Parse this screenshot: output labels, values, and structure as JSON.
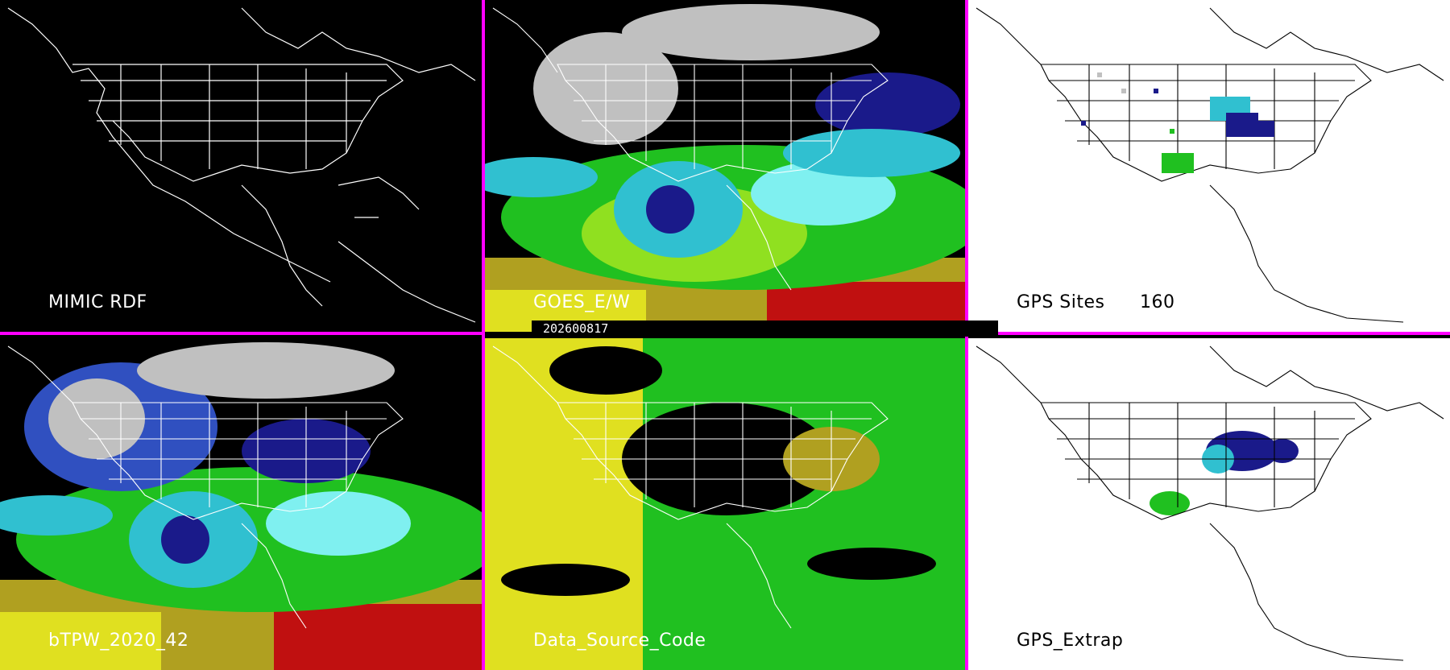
{
  "panels": [
    {
      "label": "MIMIC RDF",
      "theme": "dark"
    },
    {
      "label": "GOES_E/W",
      "theme": "dark"
    },
    {
      "label": "GPS Sites",
      "count": "160",
      "theme": "light"
    },
    {
      "label": "bTPW_2020_42",
      "theme": "dark"
    },
    {
      "label": "Data_Source_Code",
      "theme": "dark"
    },
    {
      "label": "GPS_Extrap",
      "theme": "light"
    }
  ],
  "date_label": "202600817",
  "colors": {
    "separator": "#ff00ff",
    "dark_bg": "#000000",
    "light_bg": "#ffffff",
    "map_lines_dark": "#ffffff",
    "map_lines_light": "#000000",
    "palette": [
      "#1a1a8a",
      "#3050c0",
      "#30c0d0",
      "#7ff0f0",
      "#20c020",
      "#90e020",
      "#e0e020",
      "#b0a020",
      "#c01010",
      "#c0c0c0"
    ]
  }
}
